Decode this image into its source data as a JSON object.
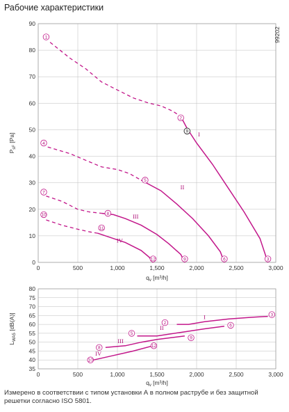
{
  "title": "Рабочие характеристики",
  "caption": "Измерено в соответствии с типом установки А в полном раструбе и без защитной решетки согласно ISO 5801.",
  "doc_code": "99202",
  "colors": {
    "curve": "#c2168a",
    "grid": "#bdbdbd",
    "marker_text": "#b0127a"
  },
  "chart_data": [
    {
      "type": "line",
      "chart": "pressure",
      "xlabel": "q",
      "xlabel_sub": "v",
      "xlabel_unit": "[m³/h]",
      "ylabel": "P",
      "ylabel_sub": "sF",
      "ylabel_unit": "[Pa]",
      "xlim": [
        0,
        3000
      ],
      "ylim": [
        0,
        90
      ],
      "xticks": [
        0,
        500,
        1000,
        1500,
        2000,
        2500,
        3000
      ],
      "xtick_labels": [
        "0",
        "500",
        "1,000",
        "1,500",
        "2,000",
        "2,500",
        "3,000"
      ],
      "yticks": [
        0,
        10,
        20,
        30,
        40,
        50,
        60,
        70,
        80,
        90
      ],
      "grid": true,
      "series": [
        {
          "name": "I",
          "dashed": [
            [
              150,
              83
            ],
            [
              400,
              77
            ],
            [
              600,
              73
            ],
            [
              800,
              68
            ],
            [
              1000,
              65
            ],
            [
              1200,
              62
            ],
            [
              1400,
              60
            ],
            [
              1550,
              59
            ],
            [
              1700,
              57
            ],
            [
              1800,
              55
            ]
          ],
          "solid": [
            [
              1800,
              55
            ],
            [
              1880,
              50.5
            ],
            [
              2000,
              45
            ],
            [
              2200,
              37
            ],
            [
              2400,
              28
            ],
            [
              2600,
              19
            ],
            [
              2800,
              9
            ],
            [
              2900,
              0
            ]
          ],
          "label_at": [
            2030,
            47.5
          ]
        },
        {
          "name": "II",
          "dashed": [
            [
              120,
              43.5
            ],
            [
              400,
              41
            ],
            [
              600,
              38.5
            ],
            [
              800,
              36
            ],
            [
              1000,
              35
            ],
            [
              1150,
              33.5
            ],
            [
              1300,
              31
            ]
          ],
          "solid": [
            [
              1300,
              31
            ],
            [
              1550,
              27
            ],
            [
              1750,
              22
            ],
            [
              1950,
              16.5
            ],
            [
              2150,
              10
            ],
            [
              2300,
              4
            ],
            [
              2350,
              0
            ]
          ],
          "label_at": [
            1820,
            27.5
          ]
        },
        {
          "name": "III",
          "dashed": [
            [
              100,
              25
            ],
            [
              300,
              23
            ],
            [
              500,
              20
            ],
            [
              650,
              19
            ],
            [
              800,
              18.5
            ]
          ],
          "solid": [
            [
              800,
              18.5
            ],
            [
              950,
              18
            ],
            [
              1100,
              16.5
            ],
            [
              1300,
              14
            ],
            [
              1500,
              10.5
            ],
            [
              1650,
              7
            ],
            [
              1800,
              3
            ],
            [
              1850,
              0
            ]
          ],
          "label_at": [
            1230,
            16.5
          ]
        },
        {
          "name": "IV",
          "dashed": [
            [
              100,
              16
            ],
            [
              300,
              14
            ],
            [
              500,
              12.5
            ],
            [
              650,
              11.5
            ],
            [
              750,
              11
            ]
          ],
          "solid": [
            [
              750,
              11
            ],
            [
              900,
              9.5
            ],
            [
              1100,
              7.5
            ],
            [
              1300,
              4.5
            ],
            [
              1400,
              2
            ],
            [
              1450,
              0
            ]
          ],
          "label_at": [
            1030,
            7.5
          ]
        }
      ],
      "markers": [
        {
          "label": "1",
          "x": 100,
          "y": 85
        },
        {
          "label": "2",
          "x": 1800,
          "y": 54.5
        },
        {
          "label": "3",
          "x": 2900,
          "y": 1.3
        },
        {
          "label": "4",
          "x": 70,
          "y": 45
        },
        {
          "label": "5",
          "x": 1350,
          "y": 31
        },
        {
          "label": "6",
          "x": 2350,
          "y": 1.3
        },
        {
          "label": "7",
          "x": 70,
          "y": 26.5
        },
        {
          "label": "8",
          "x": 880,
          "y": 18.5
        },
        {
          "label": "9",
          "x": 1850,
          "y": 1.3
        },
        {
          "label": "10",
          "x": 70,
          "y": 18
        },
        {
          "label": "11",
          "x": 800,
          "y": 13
        },
        {
          "label": "12",
          "x": 1450,
          "y": 1.3
        },
        {
          "label": "9",
          "x": 1880,
          "y": 49.5,
          "operating_point": true
        }
      ]
    },
    {
      "type": "line",
      "chart": "sound",
      "xlabel": "q",
      "xlabel_sub": "v",
      "xlabel_unit": "[m³/h]",
      "ylabel": "L",
      "ylabel_sub": "WA5",
      "ylabel_unit": "[dB(A)]",
      "xlim": [
        0,
        3000
      ],
      "ylim": [
        35,
        80
      ],
      "xticks": [
        0,
        500,
        1000,
        1500,
        2000,
        2500,
        3000
      ],
      "xtick_labels": [
        "0",
        "500",
        "1,000",
        "1,500",
        "2,000",
        "2,500",
        "3,000"
      ],
      "yticks": [
        35,
        40,
        45,
        50,
        55,
        60,
        65,
        70,
        75,
        80
      ],
      "grid": true,
      "series": [
        {
          "name": "I",
          "points": [
            [
              1750,
              60
            ],
            [
              1900,
              60
            ],
            [
              2100,
              61.5
            ],
            [
              2400,
              63
            ],
            [
              2700,
              64
            ],
            [
              2900,
              64.5
            ]
          ],
          "label_at": [
            2100,
            63
          ]
        },
        {
          "name": "II",
          "points": [
            [
              1250,
              53.5
            ],
            [
              1500,
              53.5
            ],
            [
              1800,
              55.5
            ],
            [
              2100,
              57.5
            ],
            [
              2350,
              59
            ]
          ],
          "label_at": [
            1560,
            57
          ]
        },
        {
          "name": "III",
          "points": [
            [
              850,
              47
            ],
            [
              1100,
              48
            ],
            [
              1300,
              50
            ],
            [
              1500,
              51.5
            ],
            [
              1850,
              53.5
            ]
          ],
          "label_at": [
            1040,
            49.5
          ]
        },
        {
          "name": "IV",
          "points": [
            [
              700,
              40
            ],
            [
              950,
              42.5
            ],
            [
              1200,
              45
            ],
            [
              1450,
              48
            ]
          ],
          "label_at": [
            760,
            42.5
          ]
        }
      ],
      "markers": [
        {
          "label": "2",
          "x": 1600,
          "y": 61
        },
        {
          "label": "3",
          "x": 2950,
          "y": 65.5
        },
        {
          "label": "5",
          "x": 1180,
          "y": 55
        },
        {
          "label": "6",
          "x": 2430,
          "y": 59.5
        },
        {
          "label": "8",
          "x": 770,
          "y": 47
        },
        {
          "label": "9",
          "x": 1930,
          "y": 52.5
        },
        {
          "label": "10",
          "x": 660,
          "y": 40
        },
        {
          "label": "12",
          "x": 1460,
          "y": 48
        }
      ]
    }
  ]
}
